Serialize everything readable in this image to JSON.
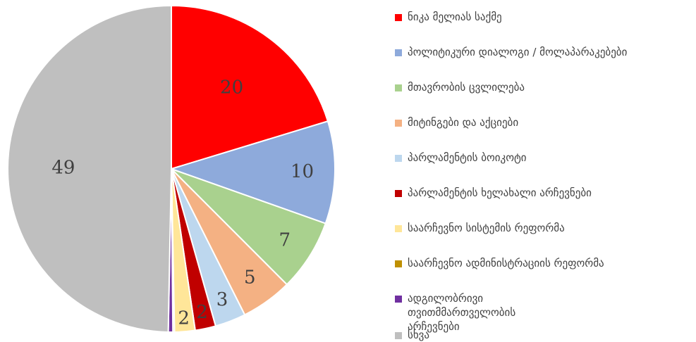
{
  "chart_data": {
    "type": "pie",
    "slices": [
      {
        "label": "ნიკა მელიას საქმე",
        "value": 20,
        "color": "#ff0000"
      },
      {
        "label": "პოლიტიკური დიალოგი / მოლაპარაკებები",
        "value": 10,
        "color": "#8eaadb"
      },
      {
        "label": "მთავრობის ცვლილება",
        "value": 7,
        "color": "#a9d18e"
      },
      {
        "label": "მიტინგები და აქციები",
        "value": 5,
        "color": "#f4b183"
      },
      {
        "label": "პარლამენტის ბოიკოტი",
        "value": 3,
        "color": "#bdd7ee"
      },
      {
        "label": "პარლამენტის ხელახალი არჩევნები",
        "value": 2,
        "color": "#c00000"
      },
      {
        "label": "საარჩევნო სისტემის რეფორმა",
        "value": 2,
        "color": "#ffe699"
      },
      {
        "label": "საარჩევნო ადმინისტრაციის რეფორმა",
        "value": 0.15,
        "color": "#bf9000"
      },
      {
        "label": "ადგილობრივი თვითმმართველობის არჩევნები",
        "value": 0.45,
        "color": "#7030a0"
      },
      {
        "label": "სხვა",
        "value": 49,
        "color": "#bfbfbf"
      }
    ],
    "data_labels": [
      "20",
      "10",
      "7",
      "5",
      "3",
      "2",
      "2",
      "",
      "",
      "49"
    ],
    "legend_position": "right"
  }
}
